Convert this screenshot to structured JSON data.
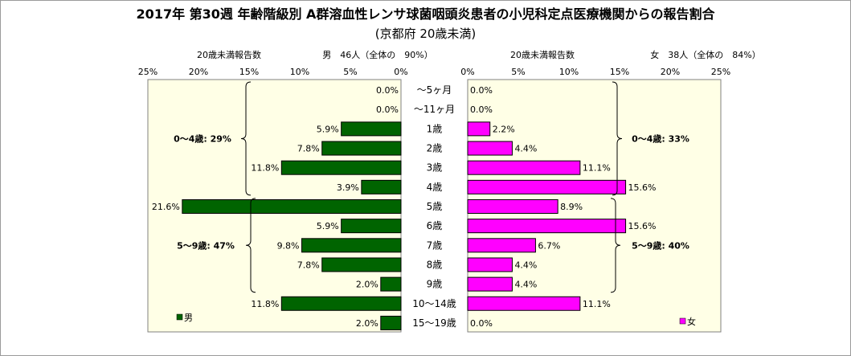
{
  "chart_data": {
    "type": "bar",
    "title": "2017年 第30週 年齢階級別 A群溶血性レンサ球菌咽頭炎患者の小児科定点医療機関からの報告割合",
    "subtitle": "(京都府 20歳未満)",
    "categories": [
      "～5ヶ月",
      "～11ヶ月",
      "1歳",
      "2歳",
      "3歳",
      "4歳",
      "5歳",
      "6歳",
      "7歳",
      "8歳",
      "9歳",
      "10～14歳",
      "15～19歳"
    ],
    "x_axis_ticks": [
      "25%",
      "20%",
      "15%",
      "10%",
      "5%",
      "0%"
    ],
    "xlim": [
      0,
      25
    ],
    "panels": {
      "male": {
        "axis_title": "20歳未満報告数",
        "summary": "男　46人（全体の　90%）",
        "legend": "男",
        "color": "#006400",
        "values": [
          0.0,
          0.0,
          5.9,
          7.8,
          11.8,
          3.9,
          21.6,
          5.9,
          9.8,
          7.8,
          2.0,
          11.8,
          2.0
        ],
        "labels": [
          "0.0%",
          "0.0%",
          "5.9%",
          "7.8%",
          "11.8%",
          "3.9%",
          "21.6%",
          "5.9%",
          "9.8%",
          "7.8%",
          "2.0%",
          "11.8%",
          "2.0%"
        ],
        "brackets": [
          "0～4歳: 29%",
          "5～9歳: 47%"
        ]
      },
      "female": {
        "axis_title": "20歳未満報告数",
        "summary": "女　38人（全体の　84%）",
        "legend": "女",
        "color": "#ff00ff",
        "values": [
          0.0,
          0.0,
          2.2,
          4.4,
          11.1,
          15.6,
          8.9,
          15.6,
          6.7,
          4.4,
          4.4,
          11.1,
          0.0
        ],
        "labels": [
          "0.0%",
          "0.0%",
          "2.2%",
          "4.4%",
          "11.1%",
          "15.6%",
          "8.9%",
          "15.6%",
          "6.7%",
          "4.4%",
          "4.4%",
          "11.1%",
          "0.0%"
        ],
        "brackets": [
          "0～4歳: 33%",
          "5～9歳: 40%"
        ]
      }
    },
    "female_x_axis_ticks": [
      "0%",
      "5%",
      "10%",
      "15%",
      "20%",
      "25%"
    ],
    "grid": false,
    "legend_position": "bottom-left / bottom-right of each panel"
  }
}
